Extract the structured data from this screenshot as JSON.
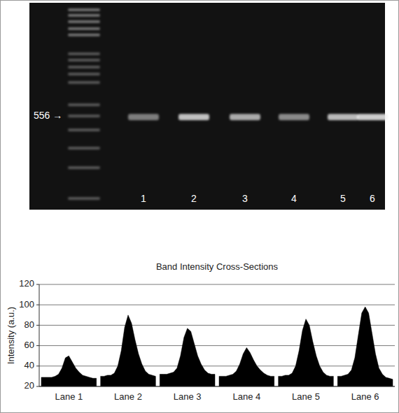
{
  "chart_data": [
    {
      "type": "gel",
      "categories": [
        "1",
        "2",
        "3",
        "4",
        "5",
        "6"
      ],
      "values": [
        50,
        90,
        77,
        58,
        86,
        98
      ],
      "ylim": [
        20,
        120
      ],
      "annotations": [
        "556 →"
      ]
    },
    {
      "type": "area",
      "title": "Band Intensity Cross-Sections",
      "y_label": "Intensity (a.u.)",
      "categories": [
        "Lane 1",
        "Lane 2",
        "Lane 3",
        "Lane 4",
        "Lane 5",
        "Lane 6"
      ],
      "values": [
        [
          29,
          29,
          29,
          29,
          30,
          32,
          38,
          48,
          50,
          44,
          38,
          34,
          31,
          30,
          29,
          28,
          28
        ],
        [
          30,
          30,
          31,
          31,
          33,
          40,
          55,
          78,
          90,
          82,
          66,
          52,
          42,
          35,
          32,
          31,
          30
        ],
        [
          32,
          32,
          32,
          33,
          34,
          38,
          50,
          68,
          77,
          74,
          62,
          50,
          42,
          36,
          33,
          32,
          32
        ],
        [
          30,
          30,
          30,
          31,
          32,
          35,
          42,
          52,
          58,
          53,
          46,
          40,
          36,
          33,
          31,
          30,
          30
        ],
        [
          30,
          30,
          31,
          31,
          33,
          40,
          55,
          75,
          86,
          80,
          64,
          50,
          40,
          34,
          31,
          30,
          30
        ],
        [
          30,
          30,
          31,
          32,
          36,
          48,
          70,
          92,
          98,
          92,
          72,
          52,
          38,
          32,
          29,
          28,
          27
        ]
      ],
      "color": "#000000",
      "ylim": [
        20,
        120
      ],
      "yticks": [
        20,
        40,
        60,
        80,
        100,
        120
      ],
      "grid": true
    }
  ]
}
